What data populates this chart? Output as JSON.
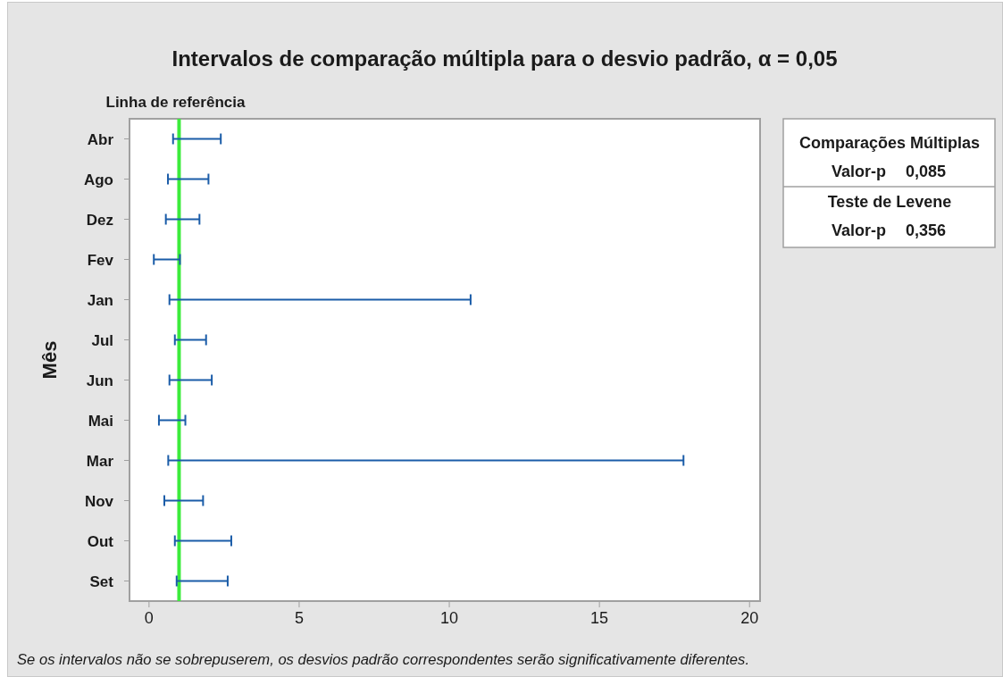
{
  "chart_data": {
    "type": "bar",
    "orientation": "horizontal",
    "title": "Intervalos de comparação múltipla para o desvio padrão, α = 0,05",
    "ylabel": "Mês",
    "categories": [
      "Abr",
      "Ago",
      "Dez",
      "Fev",
      "Jan",
      "Jul",
      "Jun",
      "Mai",
      "Mar",
      "Nov",
      "Out",
      "Set"
    ],
    "base": [
      0.8,
      0.63,
      0.56,
      0.16,
      0.68,
      0.86,
      0.68,
      0.33,
      0.64,
      0.51,
      0.86,
      0.92
    ],
    "values": [
      1.59,
      1.35,
      1.12,
      0.87,
      10.03,
      1.04,
      1.41,
      0.88,
      17.16,
      1.29,
      1.88,
      1.7
    ],
    "color": "#1a5ca8",
    "xlim": [
      -0.65,
      20.35
    ],
    "xticks": [
      0,
      5,
      10,
      15,
      20
    ],
    "ref_lines": [
      {
        "axis": "x",
        "value": 1,
        "label": "Linha de referência",
        "color": "#3cec3c"
      }
    ],
    "annotations": [
      "Comparações Múltiplas",
      "Valor-p 0,085",
      "Teste de Levene",
      "Valor-p 0,356",
      "Se os intervalos não se sobrepuserem, os desvios padrão correspondentes serão significativamente diferentes."
    ]
  }
}
